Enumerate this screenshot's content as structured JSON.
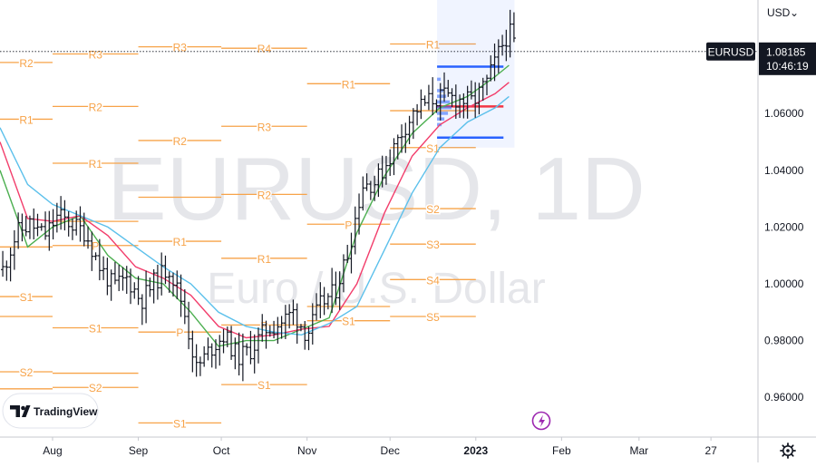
{
  "header": {
    "currency_label": "USD",
    "currency_caret": "⌄"
  },
  "watermark": {
    "symbol": "EURUSD, 1D",
    "name": "Euro / U.S. Dollar"
  },
  "branding": {
    "text": "TradingView"
  },
  "settings_icon": "gear-icon",
  "event_icon": "lightning-icon",
  "colors": {
    "pivot": "#f7a349",
    "price": "#131722",
    "ma_fast": "#4caf50",
    "ma_mid": "#f23d6b",
    "ma_slow": "#5bc0eb",
    "profile_blue": "#2962ff",
    "profile_red": "#f23645",
    "badge_bg": "#131722"
  },
  "chart_data": {
    "type": "line",
    "title": "",
    "symbol": "EURUSD",
    "timeframe": "1D",
    "ylim": [
      0.946,
      1.1
    ],
    "yticks": [
      1.06,
      1.04,
      1.02,
      1.0,
      0.98,
      0.96
    ],
    "ytick_labels": [
      "1.06000",
      "1.04000",
      "1.02000",
      "1.00000",
      "0.98000",
      "0.96000"
    ],
    "xlabels": [
      {
        "label": "Aug",
        "day": 0
      },
      {
        "label": "Sep",
        "day": 31
      },
      {
        "label": "Oct",
        "day": 61
      },
      {
        "label": "Nov",
        "day": 92
      },
      {
        "label": "Dec",
        "day": 122
      },
      {
        "label": "2023",
        "day": 153
      },
      {
        "label": "Feb",
        "day": 184
      },
      {
        "label": "Mar",
        "day": 212
      },
      {
        "label": "27",
        "day": 238
      }
    ],
    "xlim": [
      -19,
      255
    ],
    "last_price": {
      "symbol": "EURUSD",
      "value": "1.08185",
      "time": "10:46:19",
      "y": 1.08185
    },
    "price_series": {
      "name": "EURUSD",
      "days": [
        -18,
        -13,
        -8,
        -3,
        2,
        7,
        12,
        17,
        22,
        27,
        32,
        37,
        42,
        47,
        52,
        57,
        62,
        67,
        72,
        77,
        82,
        87,
        92,
        97,
        102,
        107,
        112,
        117,
        122,
        127,
        132,
        137,
        142,
        147,
        152,
        157,
        162,
        165,
        168
      ],
      "values": [
        1.005,
        1.018,
        1.021,
        1.017,
        1.024,
        1.021,
        1.018,
        1.006,
        0.999,
        1.002,
        0.994,
        1.001,
        1.006,
        0.993,
        0.97,
        0.977,
        0.982,
        0.974,
        0.977,
        0.984,
        0.986,
        0.99,
        0.982,
        0.993,
        0.997,
        1.012,
        1.035,
        1.036,
        1.045,
        1.055,
        1.062,
        1.065,
        1.066,
        1.065,
        1.064,
        1.071,
        1.083,
        1.089,
        1.082
      ]
    },
    "moving_averages": [
      {
        "color": "#4caf50",
        "days": [
          -19,
          -9,
          0,
          10,
          20,
          30,
          40,
          50,
          60,
          70,
          80,
          90,
          100,
          110,
          120,
          130,
          140,
          150,
          160,
          165
        ],
        "values": [
          1.04,
          1.013,
          1.02,
          1.024,
          1.01,
          1.002,
          1.0,
          0.99,
          0.978,
          0.98,
          0.98,
          0.984,
          0.988,
          1.018,
          1.038,
          1.053,
          1.062,
          1.066,
          1.073,
          1.077
        ]
      },
      {
        "color": "#f23d6b",
        "days": [
          -19,
          -9,
          0,
          10,
          20,
          30,
          40,
          50,
          60,
          70,
          80,
          90,
          100,
          110,
          120,
          130,
          140,
          150,
          160,
          165
        ],
        "values": [
          1.05,
          1.023,
          1.022,
          1.024,
          1.017,
          1.006,
          1.002,
          0.996,
          0.985,
          0.981,
          0.982,
          0.984,
          0.985,
          1.0,
          1.025,
          1.045,
          1.056,
          1.062,
          1.067,
          1.071
        ]
      },
      {
        "color": "#5bc0eb",
        "days": [
          -19,
          -9,
          0,
          10,
          20,
          30,
          40,
          50,
          60,
          70,
          80,
          90,
          100,
          110,
          120,
          130,
          140,
          150,
          160,
          165
        ],
        "values": [
          1.055,
          1.035,
          1.028,
          1.024,
          1.02,
          1.013,
          1.006,
          1.0,
          0.99,
          0.985,
          0.983,
          0.982,
          0.986,
          0.992,
          1.012,
          1.032,
          1.048,
          1.057,
          1.062,
          1.066
        ]
      }
    ],
    "pivot_levels": [
      {
        "label": "R2",
        "start": -19,
        "end": 0,
        "y": 1.078
      },
      {
        "label": "R1",
        "start": -19,
        "end": 0,
        "y": 1.058
      },
      {
        "label": "",
        "start": -19,
        "end": 0,
        "y": 1.013
      },
      {
        "label": "S1",
        "start": -19,
        "end": 0,
        "y": 0.9955
      },
      {
        "label": "",
        "start": -19,
        "end": 0,
        "y": 0.9885
      },
      {
        "label": "S2",
        "start": -19,
        "end": 0,
        "y": 0.969
      },
      {
        "label": "",
        "start": -19,
        "end": 0,
        "y": 0.963
      },
      {
        "label": "R3",
        "start": 0,
        "end": 31,
        "y": 1.081
      },
      {
        "label": "R2",
        "start": 0,
        "end": 31,
        "y": 1.0625
      },
      {
        "label": "R1",
        "start": 0,
        "end": 31,
        "y": 1.0425
      },
      {
        "label": "",
        "start": 0,
        "end": 31,
        "y": 1.022
      },
      {
        "label": "P",
        "start": 0,
        "end": 31,
        "y": 1.0135
      },
      {
        "label": "S1",
        "start": 0,
        "end": 31,
        "y": 0.9845
      },
      {
        "label": "",
        "start": 0,
        "end": 31,
        "y": 0.9685
      },
      {
        "label": "S2",
        "start": 0,
        "end": 31,
        "y": 0.9635
      },
      {
        "label": "R3",
        "start": 31,
        "end": 61,
        "y": 1.0835
      },
      {
        "label": "R2",
        "start": 31,
        "end": 61,
        "y": 1.0505
      },
      {
        "label": "",
        "start": 31,
        "end": 61,
        "y": 1.0305
      },
      {
        "label": "R1",
        "start": 31,
        "end": 61,
        "y": 1.015
      },
      {
        "label": "P",
        "start": 31,
        "end": 61,
        "y": 0.983
      },
      {
        "label": "S1",
        "start": 31,
        "end": 61,
        "y": 0.951
      },
      {
        "label": "R4",
        "start": 61,
        "end": 92,
        "y": 1.083
      },
      {
        "label": "R3",
        "start": 61,
        "end": 92,
        "y": 1.0555
      },
      {
        "label": "R2",
        "start": 61,
        "end": 92,
        "y": 1.0315
      },
      {
        "label": "R1",
        "start": 61,
        "end": 92,
        "y": 1.009
      },
      {
        "label": "P",
        "start": 61,
        "end": 92,
        "y": 0.9855
      },
      {
        "label": "S1",
        "start": 61,
        "end": 92,
        "y": 0.9645
      },
      {
        "label": "R1",
        "start": 92,
        "end": 122,
        "y": 1.0705
      },
      {
        "label": "P",
        "start": 92,
        "end": 122,
        "y": 1.021
      },
      {
        "label": "",
        "start": 92,
        "end": 122,
        "y": 0.992
      },
      {
        "label": "S1",
        "start": 92,
        "end": 122,
        "y": 0.987
      },
      {
        "label": "R2",
        "start": 122,
        "end": 153,
        "y": 1.1025
      },
      {
        "label": "R1",
        "start": 122,
        "end": 153,
        "y": 1.0845
      },
      {
        "label": "",
        "start": 122,
        "end": 153,
        "y": 1.061
      },
      {
        "label": "S1",
        "start": 122,
        "end": 153,
        "y": 1.048
      },
      {
        "label": "S2",
        "start": 122,
        "end": 153,
        "y": 1.0265
      },
      {
        "label": "S3",
        "start": 122,
        "end": 153,
        "y": 1.014
      },
      {
        "label": "S4",
        "start": 122,
        "end": 153,
        "y": 1.0015
      },
      {
        "label": "S5",
        "start": 122,
        "end": 153,
        "y": 0.9885
      }
    ]
  }
}
